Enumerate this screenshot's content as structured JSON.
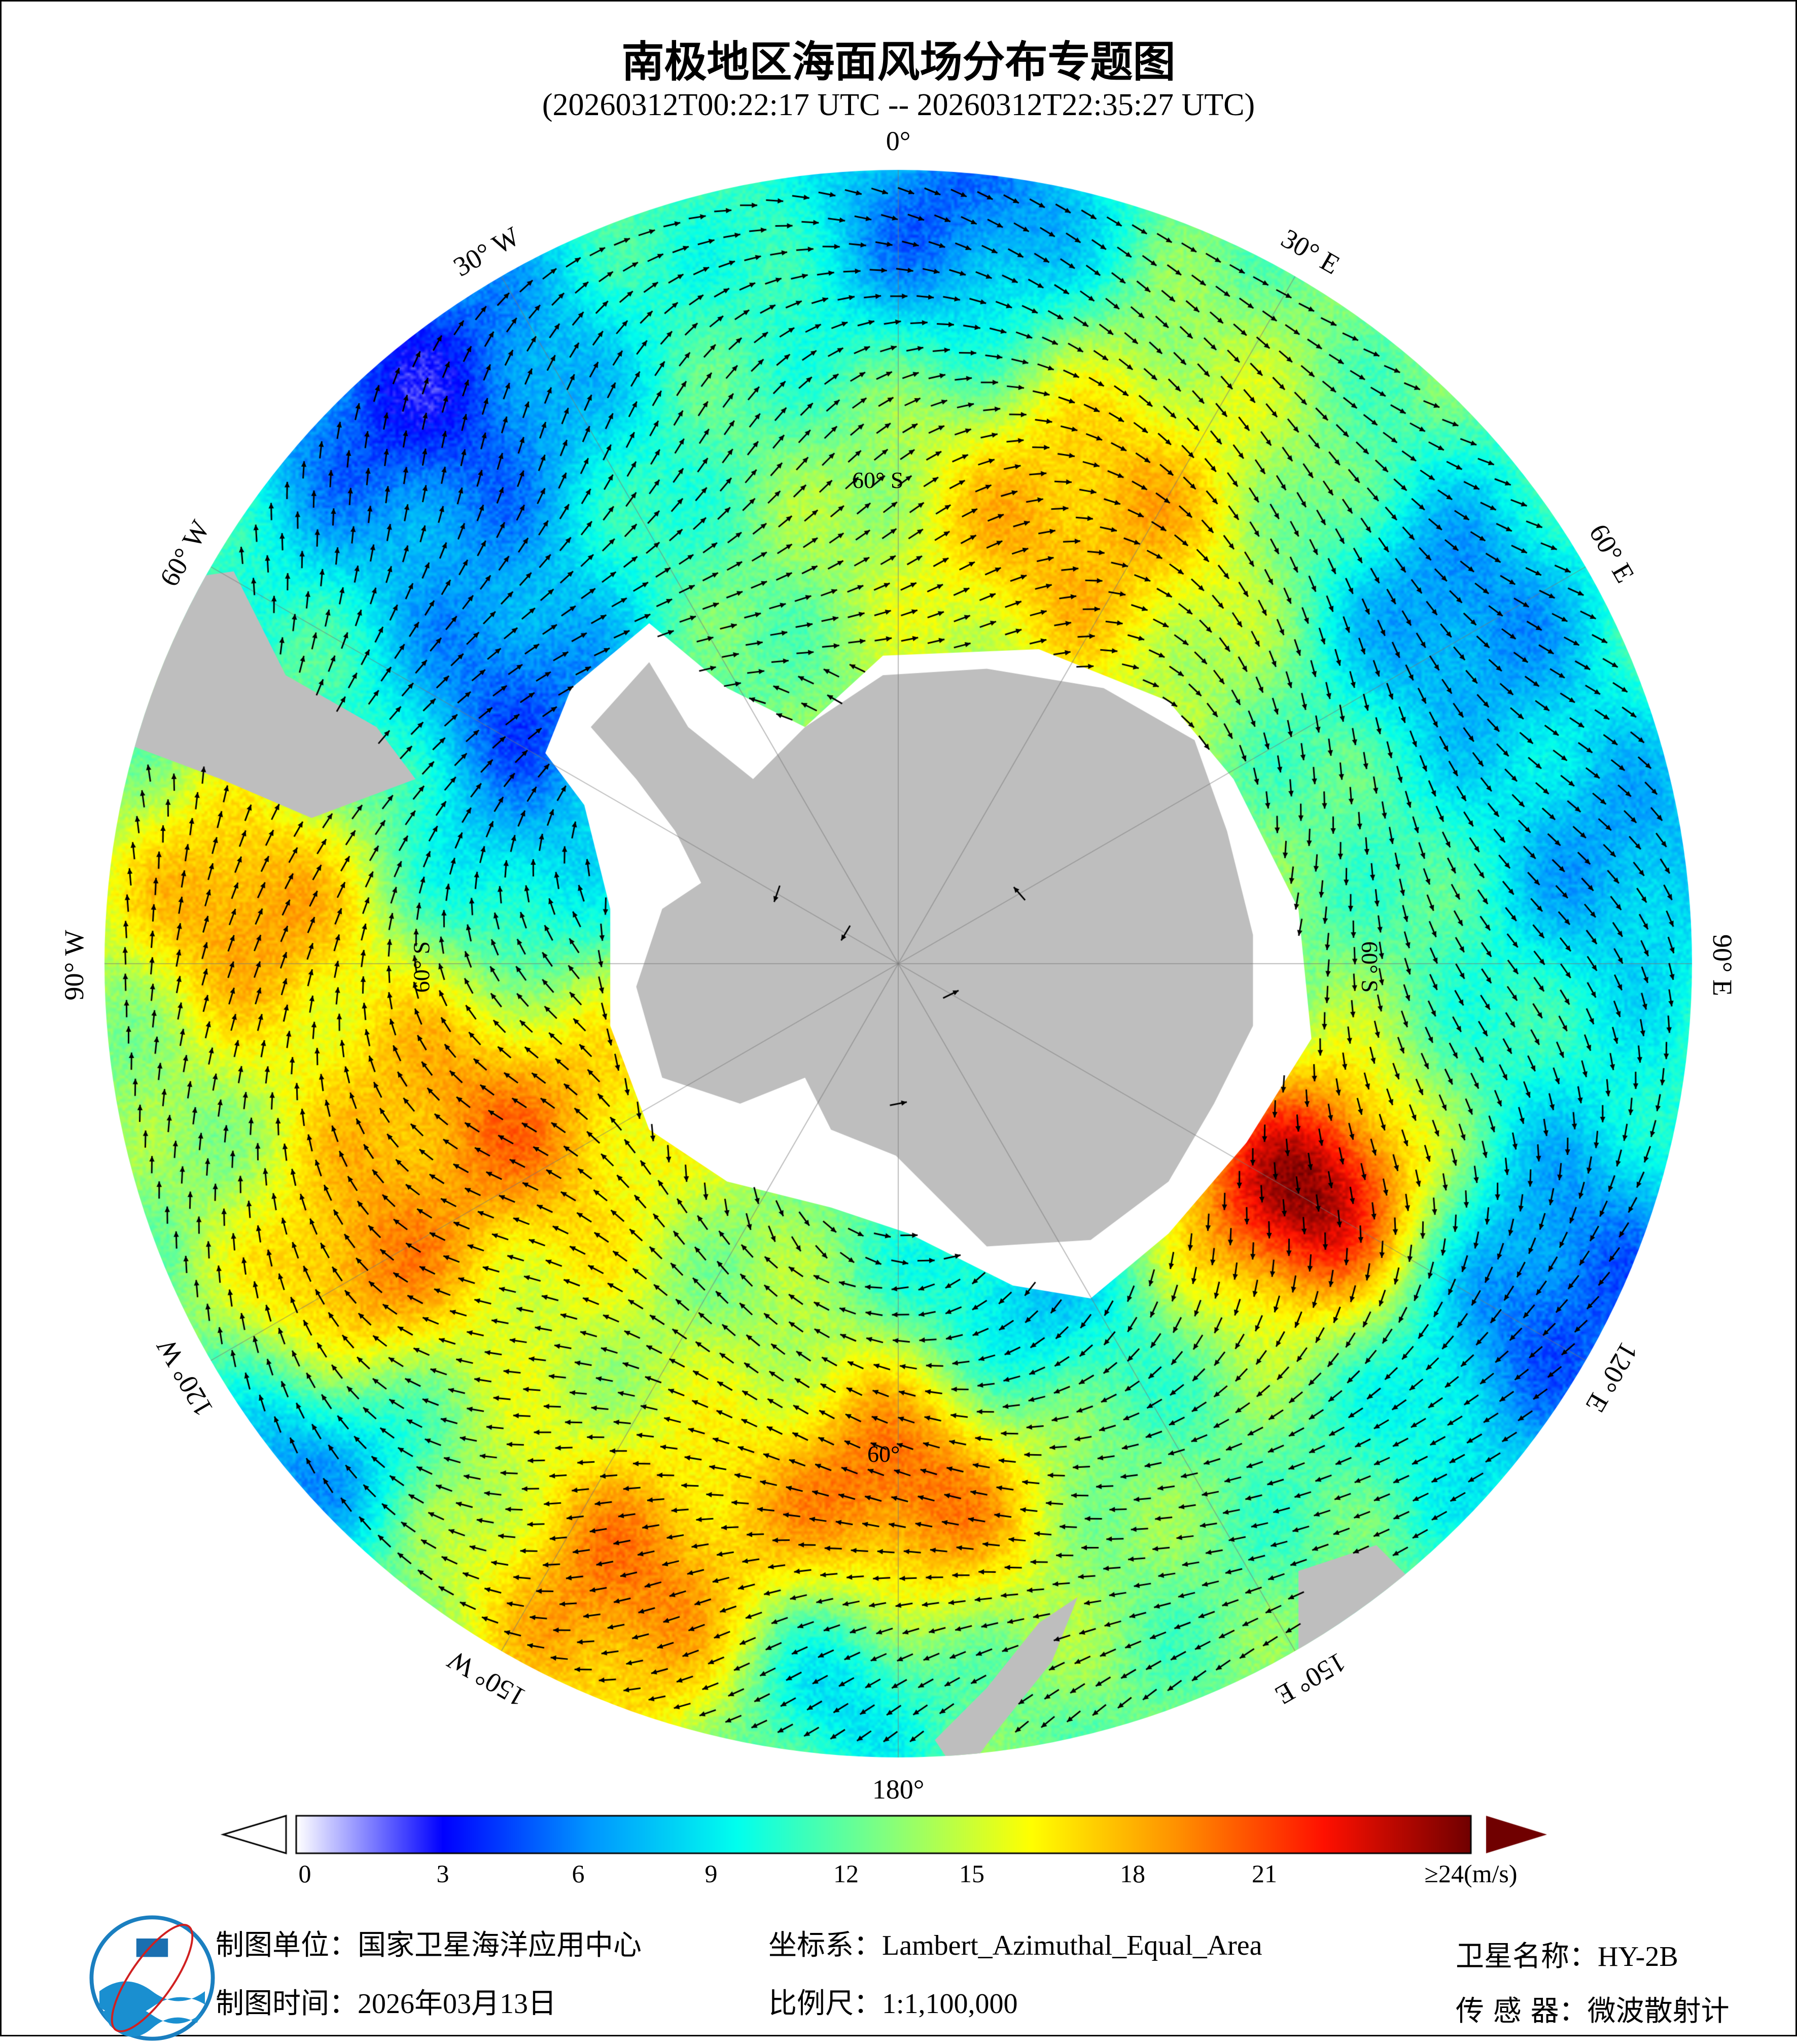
{
  "title": "南极地区海面风场分布专题图",
  "subtitle": "(20260312T00:22:17 UTC -- 20260312T22:35:27 UTC)",
  "map": {
    "projection_label": "Lambert_Azimuthal_Equal_Area",
    "longitude_labels": [
      {
        "text": "0°",
        "lon": 0
      },
      {
        "text": "30° E",
        "lon": 30
      },
      {
        "text": "60° E",
        "lon": 60
      },
      {
        "text": "90° E",
        "lon": 90
      },
      {
        "text": "120° E",
        "lon": 120
      },
      {
        "text": "150° E",
        "lon": 150
      },
      {
        "text": "180°",
        "lon": 180
      },
      {
        "text": "150° W",
        "lon": -150
      },
      {
        "text": "120° W",
        "lon": -120
      },
      {
        "text": "90° W",
        "lon": -90
      },
      {
        "text": "60° W",
        "lon": -60
      },
      {
        "text": "30° W",
        "lon": -30
      }
    ],
    "latitude_labels": [
      "60° S",
      "60° S",
      "60° S",
      "60°"
    ],
    "colors": {
      "land": "#bebebe",
      "ice": "#ffffff",
      "arrow": "#000000"
    }
  },
  "colorbar": {
    "ticks": [
      "0",
      "3",
      "6",
      "9",
      "12",
      "15",
      "18",
      "21",
      "≥24(m/s)"
    ],
    "min": 0,
    "max": 24,
    "colormap": [
      "#ffffff",
      "#0000ff",
      "#0096ff",
      "#00ffee",
      "#80ff80",
      "#ffff00",
      "#ff9000",
      "#ff1000",
      "#700000"
    ]
  },
  "footer": {
    "org_label": "制图单位：",
    "org_value": "国家卫星海洋应用中心",
    "date_label": "制图时间：",
    "date_value": "2026年03月13日",
    "crs_label": "坐标系：",
    "crs_value": "Lambert_Azimuthal_Equal_Area",
    "scale_label": "比例尺：",
    "scale_value": "1:1,100,000",
    "satellite_label": "卫星名称：",
    "satellite_value": "HY-2B",
    "sensor_label": "传 感 器：",
    "sensor_value": "微波散射计"
  }
}
